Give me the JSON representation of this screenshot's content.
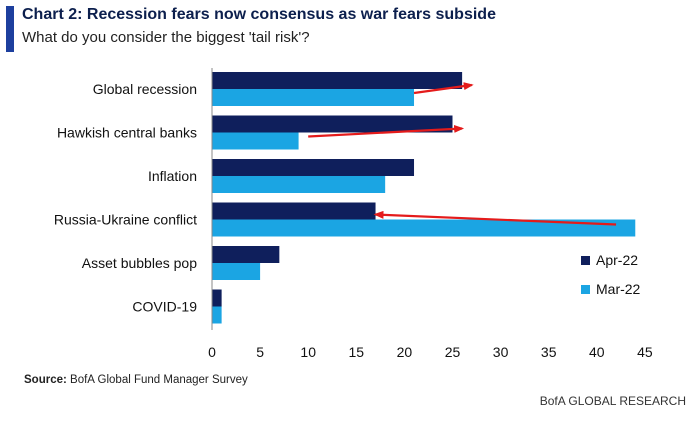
{
  "header": {
    "title": "Chart 2: Recession fears now consensus as war fears subside",
    "subtitle": "What do you consider the biggest 'tail risk'?"
  },
  "footer": {
    "source_label": "Source:",
    "source_text": "BofA Global Fund Manager Survey",
    "brand": "BofA GLOBAL RESEARCH"
  },
  "colors": {
    "accent": "#1d3f9e",
    "series_apr": "#0f1f5c",
    "series_mar": "#1ba5e3",
    "arrow": "#e41b1b"
  },
  "chart_data": {
    "type": "bar",
    "orientation": "horizontal",
    "categories": [
      "Global recession",
      "Hawkish central banks",
      "Inflation",
      "Russia-Ukraine conflict",
      "Asset bubbles pop",
      "COVID-19"
    ],
    "series": [
      {
        "name": "Apr-22",
        "values": [
          26,
          25,
          21,
          17,
          7,
          1
        ]
      },
      {
        "name": "Mar-22",
        "values": [
          21,
          9,
          18,
          44,
          5,
          1
        ]
      }
    ],
    "xlim": [
      0,
      45
    ],
    "xticks": [
      "0",
      "5",
      "10",
      "15",
      "20",
      "25",
      "30",
      "35",
      "40",
      "45"
    ],
    "legend": "bottom-right",
    "annotations": [
      {
        "type": "arrow",
        "category": "Global recession",
        "from": 21,
        "to": 27
      },
      {
        "type": "arrow",
        "category": "Hawkish central banks",
        "from": 10,
        "to": 26
      },
      {
        "type": "arrow",
        "category": "Russia-Ukraine conflict",
        "from": 42,
        "to": 17
      }
    ]
  }
}
